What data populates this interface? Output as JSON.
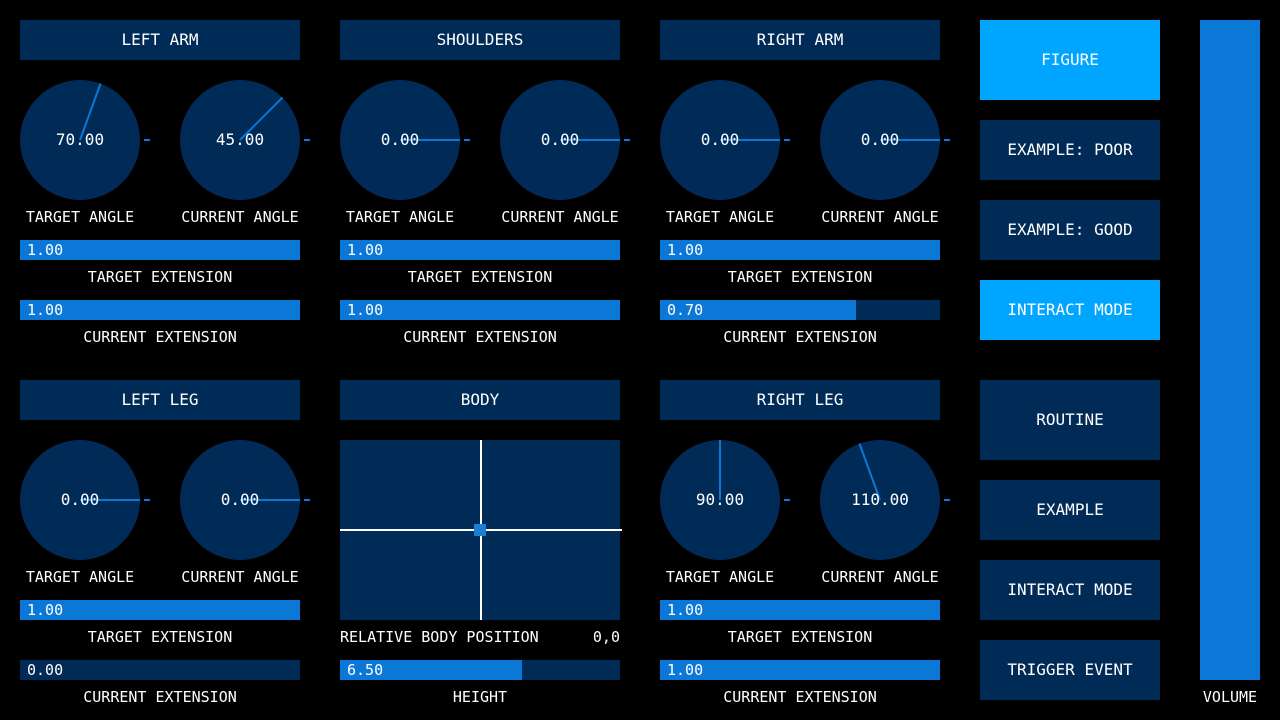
{
  "colors": {
    "panel": "#002b57",
    "fill": "#0b78d8",
    "active": "#00a5ff",
    "background": "#000000"
  },
  "sections": {
    "left_arm": {
      "title": "LEFT ARM",
      "target_angle": {
        "value": "70.00",
        "label": "TARGET ANGLE"
      },
      "current_angle": {
        "value": "45.00",
        "label": "CURRENT ANGLE"
      },
      "target_extension": {
        "value": "1.00",
        "fraction": 1.0,
        "label": "TARGET EXTENSION"
      },
      "current_extension": {
        "value": "1.00",
        "fraction": 1.0,
        "label": "CURRENT EXTENSION"
      }
    },
    "shoulders": {
      "title": "SHOULDERS",
      "target_angle": {
        "value": "0.00",
        "label": "TARGET ANGLE"
      },
      "current_angle": {
        "value": "0.00",
        "label": "CURRENT ANGLE"
      },
      "target_extension": {
        "value": "1.00",
        "fraction": 1.0,
        "label": "TARGET EXTENSION"
      },
      "current_extension": {
        "value": "1.00",
        "fraction": 1.0,
        "label": "CURRENT EXTENSION"
      }
    },
    "right_arm": {
      "title": "RIGHT ARM",
      "target_angle": {
        "value": "0.00",
        "label": "TARGET ANGLE"
      },
      "current_angle": {
        "value": "0.00",
        "label": "CURRENT ANGLE"
      },
      "target_extension": {
        "value": "1.00",
        "fraction": 1.0,
        "label": "TARGET EXTENSION"
      },
      "current_extension": {
        "value": "0.70",
        "fraction": 0.7,
        "label": "CURRENT EXTENSION"
      }
    },
    "left_leg": {
      "title": "LEFT LEG",
      "target_angle": {
        "value": "0.00",
        "label": "TARGET ANGLE"
      },
      "current_angle": {
        "value": "0.00",
        "label": "CURRENT ANGLE"
      },
      "target_extension": {
        "value": "1.00",
        "fraction": 1.0,
        "label": "TARGET EXTENSION"
      },
      "current_extension": {
        "value": "0.00",
        "fraction": 0.0,
        "label": "CURRENT EXTENSION"
      }
    },
    "body": {
      "title": "BODY",
      "position_label": "RELATIVE BODY POSITION",
      "position_value": "0,0",
      "height": {
        "value": "6.50",
        "fraction": 0.65,
        "label": "HEIGHT"
      }
    },
    "right_leg": {
      "title": "RIGHT LEG",
      "target_angle": {
        "value": "90.00",
        "label": "TARGET ANGLE"
      },
      "current_angle": {
        "value": "110.00",
        "label": "CURRENT ANGLE"
      },
      "target_extension": {
        "value": "1.00",
        "fraction": 1.0,
        "label": "TARGET EXTENSION"
      },
      "current_extension": {
        "value": "1.00",
        "fraction": 1.0,
        "label": "CURRENT EXTENSION"
      }
    }
  },
  "buttons": {
    "figure": "FIGURE",
    "example_poor": "EXAMPLE: POOR",
    "example_good": "EXAMPLE: GOOD",
    "interact_mode_top": "INTERACT MODE",
    "routine": "ROUTINE",
    "example": "EXAMPLE",
    "interact_mode_bottom": "INTERACT MODE",
    "trigger_event": "TRIGGER EVENT"
  },
  "volume": {
    "label": "VOLUME",
    "fraction": 1.0
  }
}
